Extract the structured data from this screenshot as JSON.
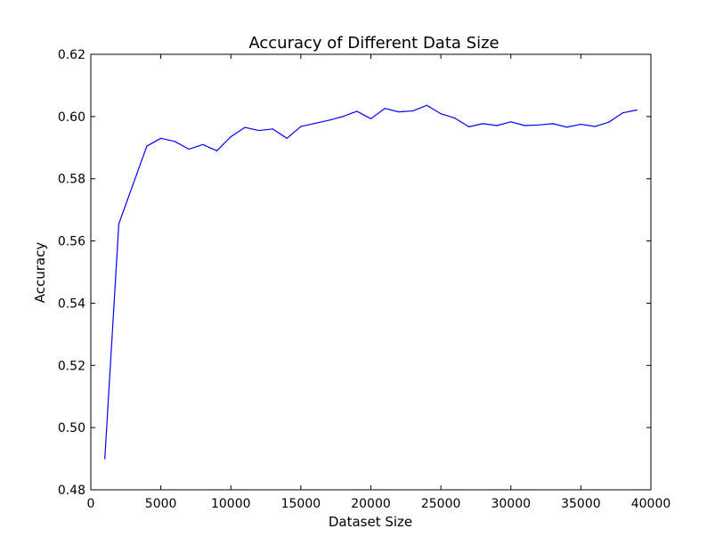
{
  "chart_data": {
    "type": "line",
    "title": "Accuracy of Different Data Size",
    "xlabel": "Dataset Size",
    "ylabel": "Accuracy",
    "xlim": [
      0,
      40000
    ],
    "ylim": [
      0.48,
      0.62
    ],
    "xticks": [
      0,
      5000,
      10000,
      15000,
      20000,
      25000,
      30000,
      35000,
      40000
    ],
    "xtick_labels": [
      "0",
      "5000",
      "10000",
      "15000",
      "20000",
      "25000",
      "30000",
      "35000",
      "40000"
    ],
    "yticks": [
      0.48,
      0.5,
      0.52,
      0.54,
      0.56,
      0.58,
      0.6,
      0.62
    ],
    "ytick_labels": [
      "0.48",
      "0.50",
      "0.52",
      "0.54",
      "0.56",
      "0.58",
      "0.60",
      "0.62"
    ],
    "grid": false,
    "series": [
      {
        "color": "#0000ff",
        "x": [
          1000,
          2000,
          3000,
          4000,
          5000,
          6000,
          7000,
          8000,
          9000,
          10000,
          11000,
          12000,
          13000,
          14000,
          15000,
          16000,
          17000,
          18000,
          19000,
          20000,
          21000,
          22000,
          23000,
          24000,
          25000,
          26000,
          27000,
          28000,
          29000,
          30000,
          31000,
          32000,
          33000,
          34000,
          35000,
          36000,
          37000,
          38000,
          39000
        ],
        "y": [
          0.49,
          0.5655,
          0.578,
          0.5905,
          0.593,
          0.592,
          0.5895,
          0.591,
          0.589,
          0.5935,
          0.5965,
          0.5955,
          0.596,
          0.593,
          0.5968,
          0.5978,
          0.5988,
          0.6,
          0.6017,
          0.5993,
          0.6026,
          0.6015,
          0.6018,
          0.6036,
          0.6009,
          0.5995,
          0.5967,
          0.5977,
          0.5971,
          0.5983,
          0.5971,
          0.5973,
          0.5977,
          0.5966,
          0.5975,
          0.5968,
          0.5982,
          0.6012,
          0.6021
        ]
      }
    ]
  }
}
